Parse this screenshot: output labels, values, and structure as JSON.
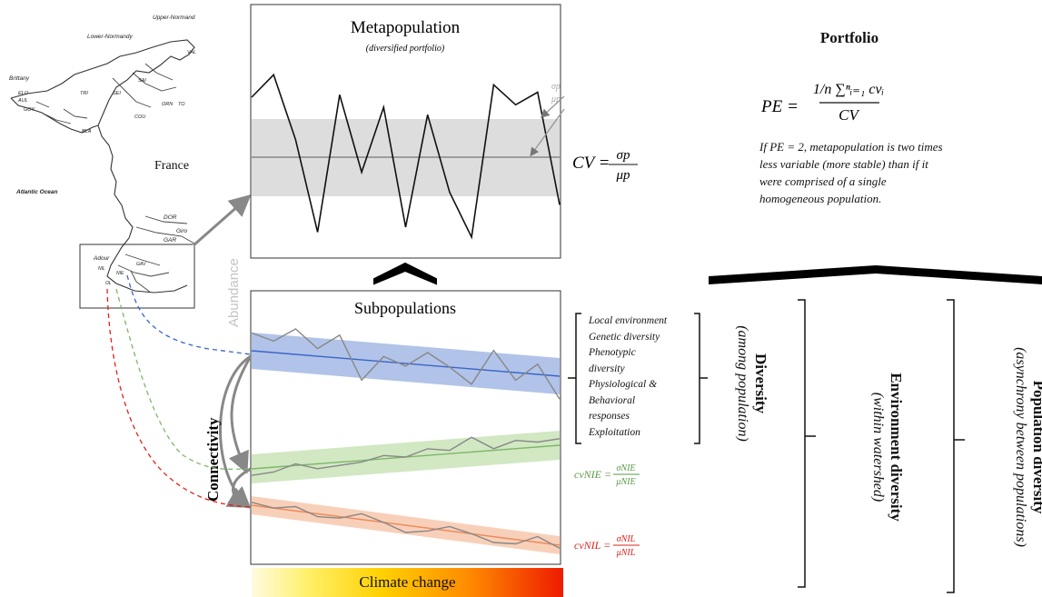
{
  "map": {
    "labels": [
      "Upper-Normand",
      "Lower-Normandy",
      "Brittany",
      "France",
      "Atlantic Ocean",
      "Adour",
      "DOR",
      "Giro",
      "GAR",
      "VAL",
      "SAI",
      "SEI",
      "ORN",
      "TO",
      "COU",
      "TRI",
      "GOY",
      "ELO",
      "AUL",
      "BLA",
      "NIE",
      "GAV",
      "NIL",
      "OL"
    ],
    "region_normand": "Upper-\nNormand",
    "region_lower": "Lower-\nNormandy"
  },
  "meta": {
    "title": "Metapopulation",
    "subtitle": "(diversified portfolio)",
    "sigma_label": "σp",
    "mu_label": "μp",
    "cv_lhs": "CV =",
    "cv_num": "σp",
    "cv_den": "μp",
    "series": [
      1.2,
      1.65,
      0.35,
      -1.5,
      1.25,
      -0.3,
      1.0,
      -1.4,
      0.85,
      -0.7,
      -1.6,
      1.45,
      1.05,
      1.3,
      -0.95
    ]
  },
  "sub": {
    "title": "Subpopulations",
    "y_axis": "Abundance",
    "connectivity": "Connectivity",
    "blue": [
      0.7,
      0.45,
      1.0,
      0.3,
      0.9,
      -0.8,
      0.2,
      -0.1,
      0.5,
      0.0,
      -0.6,
      0.8,
      -0.3,
      0.4,
      -0.9
    ],
    "green": [
      -0.4,
      -0.3,
      0.1,
      -0.3,
      -0.2,
      -0.1,
      0.2,
      0.0,
      0.4,
      0.2,
      0.9,
      0.1,
      0.5,
      0.3,
      0.4
    ],
    "orange": [
      0.2,
      0.0,
      0.3,
      -0.2,
      -0.1,
      0.4,
      0.0,
      -0.5,
      -0.2,
      0.3,
      0.0,
      -0.4,
      -0.3,
      0.4,
      -0.2
    ]
  },
  "cv_labels": {
    "nie_lhs": "cvNIE =",
    "nie_num": "σNIE",
    "nie_den": "μNIE",
    "nil_lhs": "cvNIL =",
    "nil_num": "σNIL",
    "nil_den": "μNIL"
  },
  "portfolio": {
    "title": "Portfolio",
    "eq_lhs": "PE =",
    "eq_num": "1/n ∑ⁿᵢ₌₁ cvᵢ",
    "eq_den": "CV",
    "note": "If PE = 2, metapopulation is two times less variable (more stable) than if it were comprised of a single homogeneous population."
  },
  "drivers": [
    "Local environment",
    "Genetic diversity",
    "Phenotypic",
    "diversity",
    "Physiological &",
    "Behavioral",
    "responses",
    "Exploitation"
  ],
  "diversity": {
    "title": "Diversity",
    "subtitle": "(among population)",
    "env_title": "Environment diversity",
    "env_subtitle": "(within watershed)",
    "pop_title": "Population diversity",
    "pop_subtitle": "(asynchrony between populations)"
  },
  "climate": {
    "label": "Climate change"
  },
  "colors": {
    "blue": "#3a64c8",
    "blue_band": "#a9bde6",
    "green": "#7fb56a",
    "green_band": "#cfe7c0",
    "orange": "#ee8a5c",
    "orange_band": "#f8cdb5",
    "red_text": "#e0201a",
    "green_text": "#5a9a44",
    "grey_band": "#dddddd"
  }
}
